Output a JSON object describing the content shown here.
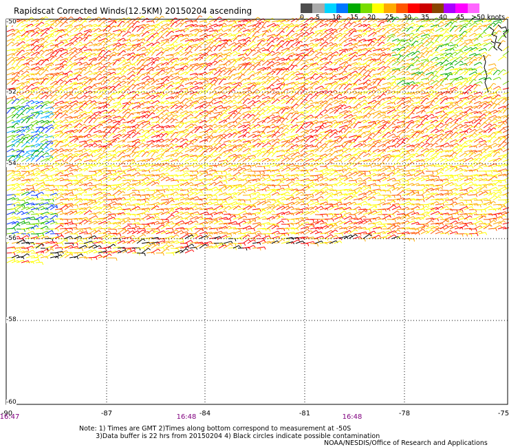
{
  "title": "Rapidscat Corrected Winds(12.5KM) 20150204 ascending",
  "legend": {
    "labels": [
      "0",
      "5",
      "10",
      "15",
      "20",
      "25",
      "30",
      "35",
      "40",
      "45",
      ">50 knots"
    ],
    "colors": [
      "#4d4d4d",
      "#aaaaaa",
      "#00d4ff",
      "#0077ff",
      "#00aa00",
      "#77dd00",
      "#ffff00",
      "#ffaa00",
      "#ff5500",
      "#ff0000",
      "#cc0000",
      "#884400",
      "#aa00ff",
      "#ff00ff",
      "#ff66ff"
    ]
  },
  "latitude_labels": [
    "-50",
    "-52",
    "-54",
    "-56",
    "-58",
    "-60"
  ],
  "longitude_labels": [
    "-90",
    "-87",
    "-84",
    "-81",
    "-78",
    "-75"
  ],
  "time_labels": [
    "16:47",
    "16:48",
    "16:48"
  ],
  "notes": {
    "line1": "Note: 1) Times are GMT 2)Times along bottom correspond to measurement at -50S",
    "line2": "3)Data buffer is 22 hrs from 20150204 4) Black circles indicate possible contamination"
  },
  "credit": "NOAA/NESDIS/Office of Research and Applications",
  "map": {
    "lon_range": [
      -90,
      -75
    ],
    "lat_range": [
      -60,
      -50
    ],
    "grid": "dotted",
    "content": "wind barbs colored by speed in knots"
  }
}
